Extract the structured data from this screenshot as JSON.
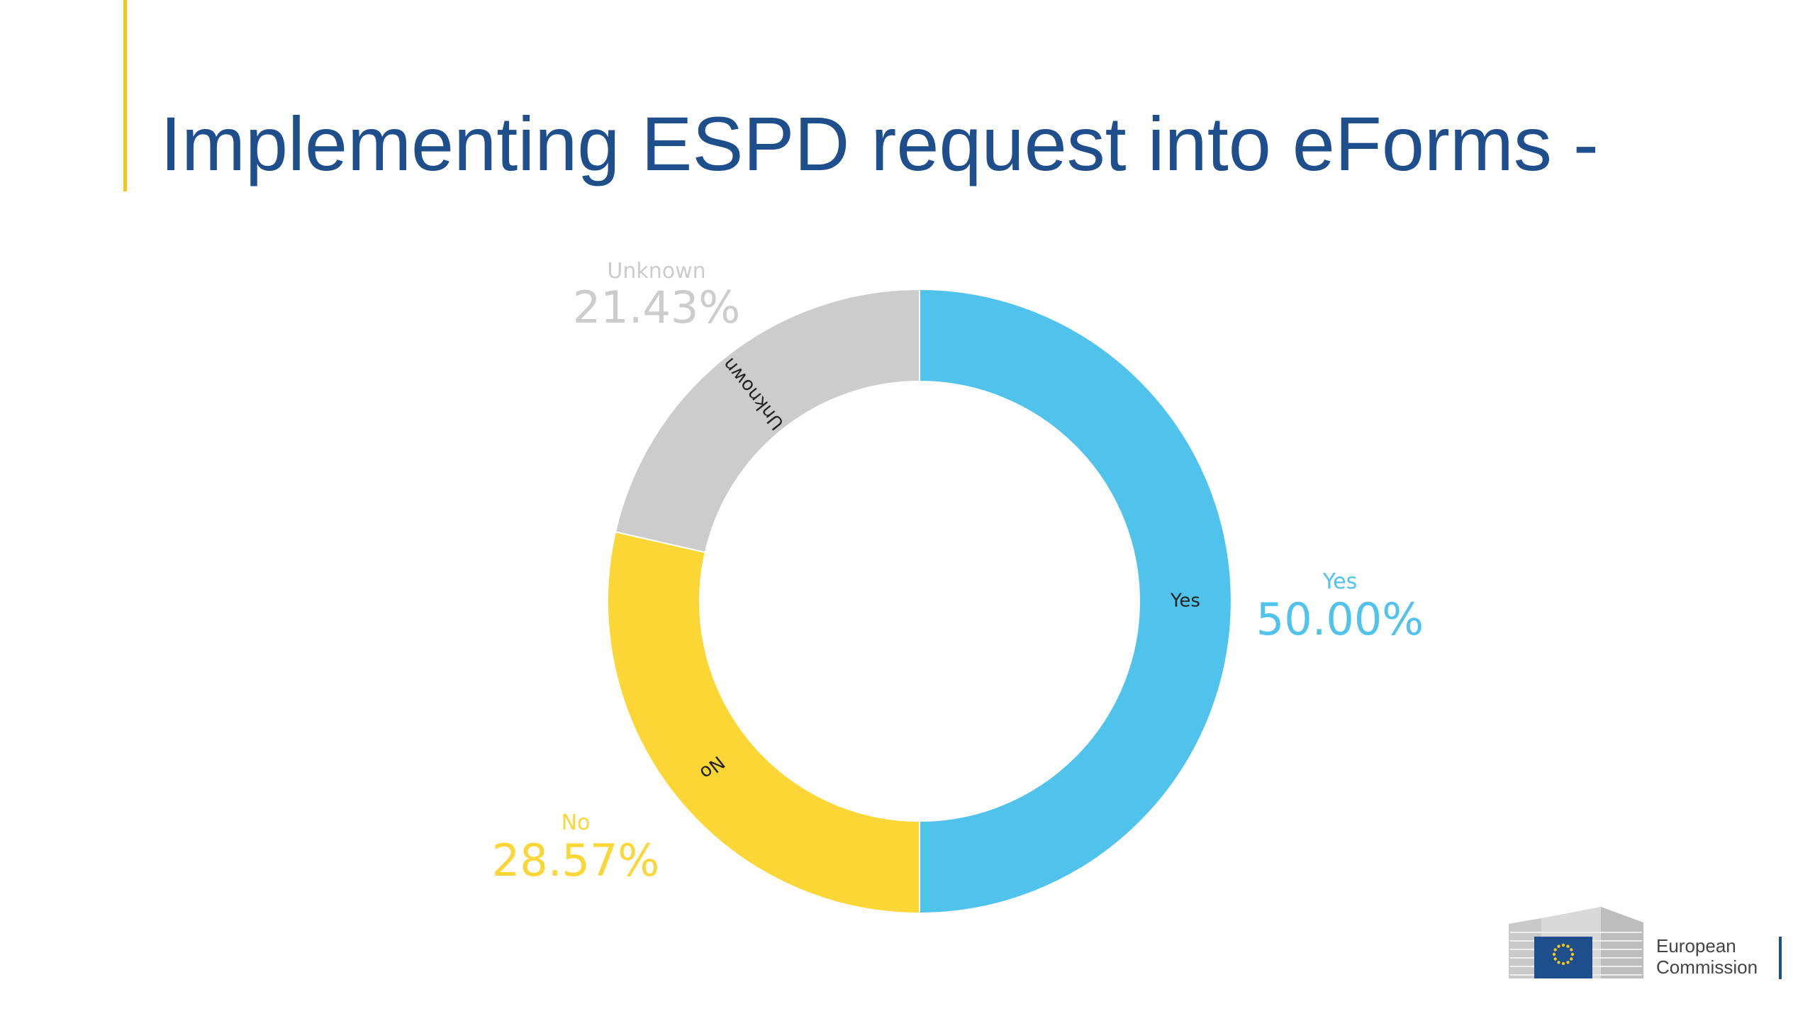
{
  "slide": {
    "title": "Implementing ESPD request into eForms -"
  },
  "logo": {
    "line1": "European",
    "line2": "Commission"
  },
  "colors": {
    "title": "#1f4e8c",
    "accent": "#f5c518",
    "yes": "#4fc3ec",
    "no": "#fbd634",
    "unknown": "#cccccc"
  },
  "chart_data": {
    "type": "pie",
    "subtype": "donut",
    "categories": [
      "Yes",
      "No",
      "Unknown"
    ],
    "values": [
      50.0,
      28.57,
      21.43
    ],
    "value_labels": [
      "50.00%",
      "28.57%",
      "21.43%"
    ],
    "colors": [
      "#4fc3ec",
      "#fbd634",
      "#cccccc"
    ],
    "start_angle": "12 o'clock",
    "direction": "clockwise"
  }
}
